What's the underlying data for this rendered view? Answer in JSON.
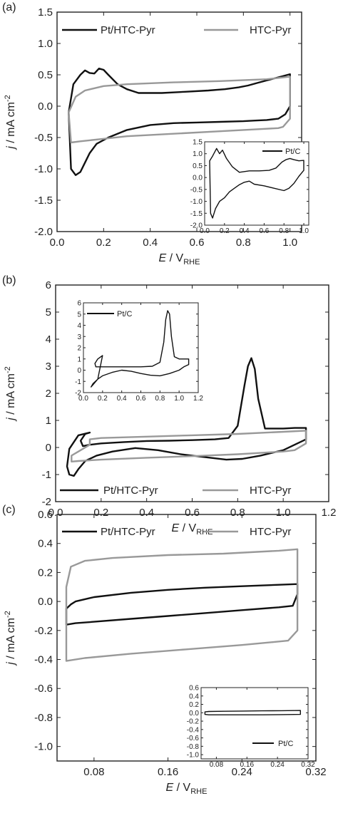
{
  "chart_data": [
    {
      "type": "line",
      "panel_label": "(a)",
      "xlabel": {
        "symbol": "E",
        "unit": "V",
        "unit_sub": "RHE"
      },
      "ylabel": {
        "symbol": "j",
        "unit": "mA cm",
        "unit_sup": "-2"
      },
      "xlim": [
        0.0,
        1.05
      ],
      "ylim": [
        -2.0,
        1.5
      ],
      "x_ticks": [
        0.0,
        0.2,
        0.4,
        0.6,
        0.8,
        1.0
      ],
      "x_tick_labels": [
        "0.0",
        "0.2",
        "0.4",
        "0.6",
        "0.8",
        "1.0"
      ],
      "y_ticks": [
        -2.0,
        -1.5,
        -1.0,
        -0.5,
        0.0,
        0.5,
        1.0,
        1.5
      ],
      "y_tick_labels": [
        "-2.0",
        "-1.5",
        "-1.0",
        "-0.5",
        "0.0",
        "0.5",
        "1.0",
        "1.5"
      ],
      "legend": "top",
      "grid": false,
      "series": [
        {
          "name": "Pt/HTC-Pyr",
          "color": "#111111",
          "x": [
            0.05,
            0.07,
            0.1,
            0.12,
            0.14,
            0.16,
            0.18,
            0.2,
            0.22,
            0.26,
            0.3,
            0.35,
            0.45,
            0.55,
            0.65,
            0.72,
            0.78,
            0.82,
            0.86,
            0.9,
            0.94,
            0.97,
            0.99,
            1.0,
            1.0,
            0.98,
            0.95,
            0.9,
            0.85,
            0.8,
            0.7,
            0.6,
            0.5,
            0.4,
            0.3,
            0.22,
            0.17,
            0.14,
            0.12,
            0.1,
            0.08,
            0.06,
            0.05
          ],
          "y": [
            -0.1,
            0.35,
            0.5,
            0.57,
            0.53,
            0.52,
            0.6,
            0.58,
            0.5,
            0.35,
            0.27,
            0.21,
            0.21,
            0.23,
            0.25,
            0.27,
            0.3,
            0.33,
            0.37,
            0.41,
            0.45,
            0.48,
            0.5,
            0.51,
            0.0,
            -0.13,
            -0.2,
            -0.22,
            -0.23,
            -0.24,
            -0.25,
            -0.26,
            -0.27,
            -0.3,
            -0.38,
            -0.5,
            -0.6,
            -0.75,
            -0.9,
            -1.05,
            -1.1,
            -1.0,
            -0.1
          ]
        },
        {
          "name": "HTC-Pyr",
          "color": "#999999",
          "x": [
            0.05,
            0.08,
            0.12,
            0.2,
            0.3,
            0.5,
            0.7,
            0.9,
            1.0,
            1.0,
            0.97,
            0.95,
            0.9,
            0.7,
            0.5,
            0.3,
            0.2,
            0.1,
            0.06,
            0.05
          ],
          "y": [
            -0.1,
            0.15,
            0.25,
            0.32,
            0.35,
            0.38,
            0.4,
            0.43,
            0.47,
            -0.2,
            -0.33,
            -0.35,
            -0.36,
            -0.4,
            -0.44,
            -0.48,
            -0.52,
            -0.56,
            -0.58,
            -0.1
          ]
        }
      ],
      "inset": {
        "xlim": [
          0.0,
          1.05
        ],
        "ylim": [
          -2.0,
          1.5
        ],
        "x_ticks": [
          0.0,
          0.2,
          0.4,
          0.6,
          0.8,
          1.0
        ],
        "x_tick_labels": [
          "0.0",
          "0.2",
          "0.4",
          "0.6",
          "0.8",
          "1.0"
        ],
        "y_ticks": [
          -2.0,
          -1.5,
          -1.0,
          -0.5,
          0.0,
          0.5,
          1.0,
          1.5
        ],
        "y_tick_labels": [
          "-2.0",
          "-1.5",
          "-1.0",
          "-0.5",
          "0.0",
          "0.5",
          "1.0",
          "1.5"
        ],
        "series": [
          {
            "name": "Pt/C",
            "color": "#111111",
            "x": [
              0.05,
              0.08,
              0.12,
              0.15,
              0.18,
              0.22,
              0.28,
              0.35,
              0.45,
              0.55,
              0.65,
              0.72,
              0.78,
              0.82,
              0.86,
              0.9,
              0.95,
              1.0,
              1.0,
              0.95,
              0.9,
              0.85,
              0.8,
              0.7,
              0.6,
              0.5,
              0.45,
              0.4,
              0.35,
              0.3,
              0.25,
              0.2,
              0.15,
              0.11,
              0.08,
              0.06,
              0.05
            ],
            "y": [
              0.7,
              0.9,
              1.22,
              1.0,
              1.15,
              0.8,
              0.45,
              0.22,
              0.28,
              0.28,
              0.3,
              0.4,
              0.65,
              0.75,
              0.8,
              0.75,
              0.7,
              0.72,
              0.3,
              0.05,
              -0.25,
              -0.45,
              -0.55,
              -0.45,
              -0.35,
              -0.28,
              -0.15,
              -0.2,
              -0.3,
              -0.45,
              -0.6,
              -0.85,
              -1.0,
              -1.3,
              -1.7,
              -1.5,
              0.7
            ]
          }
        ]
      }
    },
    {
      "type": "line",
      "panel_label": "(b)",
      "xlabel": {
        "symbol": "E",
        "unit": "V",
        "unit_sub": "RHE"
      },
      "ylabel": {
        "symbol": "j",
        "unit": "mA cm",
        "unit_sup": "-2"
      },
      "xlim": [
        0.0,
        1.2
      ],
      "ylim": [
        -2,
        6
      ],
      "x_ticks": [
        0.0,
        0.2,
        0.4,
        0.6,
        0.8,
        1.0,
        1.2
      ],
      "x_tick_labels": [
        "0.0",
        "0.2",
        "0.4",
        "0.6",
        "0.8",
        "1.0",
        "1.2"
      ],
      "y_ticks": [
        -2,
        -1,
        0,
        1,
        2,
        3,
        4,
        5,
        6
      ],
      "y_tick_labels": [
        "-2",
        "-1",
        "0",
        "1",
        "2",
        "3",
        "4",
        "5",
        "6"
      ],
      "legend": "bottom",
      "grid": false,
      "series": [
        {
          "name": "Pt/HTC-Pyr",
          "color": "#111111",
          "x": [
            0.15,
            0.13,
            0.11,
            0.12,
            0.15,
            0.2,
            0.3,
            0.4,
            0.5,
            0.6,
            0.7,
            0.76,
            0.8,
            0.83,
            0.845,
            0.86,
            0.875,
            0.89,
            0.92,
            1.0,
            1.05,
            1.1,
            1.1,
            1.05,
            1.0,
            0.9,
            0.82,
            0.75,
            0.65,
            0.55,
            0.45,
            0.35,
            0.25,
            0.18,
            0.13,
            0.1,
            0.08,
            0.06,
            0.05,
            0.06,
            0.1,
            0.15
          ],
          "y": [
            0.55,
            0.5,
            0.25,
            0.05,
            0.1,
            0.15,
            0.2,
            0.24,
            0.25,
            0.27,
            0.3,
            0.35,
            0.8,
            2.3,
            3.0,
            3.3,
            2.9,
            1.8,
            0.7,
            0.7,
            0.72,
            0.72,
            0.3,
            0.1,
            -0.1,
            -0.3,
            -0.42,
            -0.45,
            -0.35,
            -0.25,
            -0.1,
            -0.02,
            -0.15,
            -0.3,
            -0.5,
            -0.8,
            -1.05,
            -1.0,
            -0.7,
            -0.05,
            0.45,
            0.55
          ]
        },
        {
          "name": "HTC-Pyr",
          "color": "#999999",
          "x": [
            0.15,
            0.15,
            0.2,
            0.4,
            0.6,
            0.8,
            1.0,
            1.1,
            1.1,
            1.05,
            1.0,
            0.8,
            0.6,
            0.4,
            0.2,
            0.1,
            0.07,
            0.07,
            0.15
          ],
          "y": [
            0.1,
            0.3,
            0.35,
            0.4,
            0.45,
            0.5,
            0.58,
            0.62,
            0.15,
            -0.1,
            -0.15,
            -0.25,
            -0.32,
            -0.38,
            -0.45,
            -0.5,
            -0.52,
            -0.3,
            0.1
          ]
        }
      ],
      "inset": {
        "xlim": [
          0.0,
          1.2
        ],
        "ylim": [
          -2,
          6
        ],
        "x_ticks": [
          0.0,
          0.2,
          0.4,
          0.6,
          0.8,
          1.0,
          1.2
        ],
        "x_tick_labels": [
          "0.0",
          "0.2",
          "0.4",
          "0.6",
          "0.8",
          "1.0",
          "1.2"
        ],
        "y_ticks": [
          -2,
          -1,
          0,
          1,
          2,
          3,
          4,
          5,
          6
        ],
        "y_tick_labels": [
          "-2",
          "-1",
          "0",
          "1",
          "2",
          "3",
          "4",
          "5",
          "6"
        ],
        "series": [
          {
            "name": "Pt/C",
            "color": "#111111",
            "x": [
              0.2,
              0.15,
              0.12,
              0.13,
              0.2,
              0.3,
              0.45,
              0.6,
              0.72,
              0.8,
              0.84,
              0.86,
              0.88,
              0.9,
              0.92,
              0.95,
              1.0,
              1.1,
              1.1,
              1.05,
              1.0,
              0.9,
              0.8,
              0.7,
              0.6,
              0.5,
              0.4,
              0.3,
              0.2,
              0.15,
              0.1,
              0.08,
              0.1,
              0.15,
              0.2
            ],
            "y": [
              1.3,
              1.0,
              0.6,
              0.3,
              0.3,
              0.3,
              0.3,
              0.3,
              0.35,
              0.7,
              2.5,
              4.5,
              5.3,
              5.0,
              3.0,
              1.2,
              1.0,
              1.0,
              0.5,
              0.3,
              0.0,
              -0.3,
              -0.5,
              -0.45,
              -0.3,
              -0.1,
              0.0,
              -0.2,
              -0.5,
              -0.8,
              -1.3,
              -1.5,
              -1.2,
              -0.8,
              1.3
            ]
          }
        ]
      }
    },
    {
      "type": "line",
      "panel_label": "(c)",
      "xlabel": {
        "symbol": "E",
        "unit": "V",
        "unit_sub": "RHE"
      },
      "ylabel": {
        "symbol": "j",
        "unit": "mA cm",
        "unit_sup": "-2"
      },
      "xlim": [
        0.04,
        0.32
      ],
      "ylim": [
        -1.1,
        0.6
      ],
      "x_ticks": [
        0.08,
        0.16,
        0.24,
        0.32
      ],
      "x_tick_labels": [
        "0.08",
        "0.16",
        "0.24",
        "0.32"
      ],
      "y_ticks": [
        -1.0,
        -0.8,
        -0.6,
        -0.4,
        -0.2,
        0.0,
        0.2,
        0.4,
        0.6
      ],
      "y_tick_labels": [
        "-1.0",
        "-0.8",
        "-0.6",
        "-0.4",
        "-0.2",
        "0.0",
        "0.2",
        "0.4",
        "0.6"
      ],
      "legend": "top",
      "grid": false,
      "series": [
        {
          "name": "Pt/HTC-Pyr",
          "color": "#111111",
          "x": [
            0.05,
            0.055,
            0.06,
            0.08,
            0.12,
            0.16,
            0.2,
            0.24,
            0.28,
            0.3,
            0.3,
            0.295,
            0.28,
            0.24,
            0.2,
            0.16,
            0.12,
            0.08,
            0.06,
            0.05,
            0.05
          ],
          "y": [
            -0.05,
            -0.02,
            0.0,
            0.03,
            0.06,
            0.08,
            0.095,
            0.105,
            0.115,
            0.12,
            0.05,
            -0.03,
            -0.04,
            -0.06,
            -0.08,
            -0.1,
            -0.12,
            -0.14,
            -0.15,
            -0.16,
            -0.05
          ]
        },
        {
          "name": "HTC-Pyr",
          "color": "#999999",
          "x": [
            0.05,
            0.05,
            0.055,
            0.07,
            0.1,
            0.16,
            0.22,
            0.28,
            0.3,
            0.3,
            0.3,
            0.29,
            0.24,
            0.18,
            0.12,
            0.07,
            0.05,
            0.05
          ],
          "y": [
            -0.4,
            0.1,
            0.24,
            0.28,
            0.3,
            0.32,
            0.33,
            0.35,
            0.36,
            0.2,
            -0.2,
            -0.27,
            -0.3,
            -0.33,
            -0.36,
            -0.39,
            -0.41,
            -0.4
          ]
        }
      ],
      "inset": {
        "xlim": [
          0.04,
          0.32
        ],
        "ylim": [
          -1.1,
          0.6
        ],
        "x_ticks": [
          0.08,
          0.16,
          0.24,
          0.32
        ],
        "x_tick_labels": [
          "0.08",
          "0.16",
          "0.24",
          "0.32"
        ],
        "y_ticks": [
          -1.0,
          -0.8,
          -0.6,
          -0.4,
          -0.2,
          0.0,
          0.2,
          0.4,
          0.6
        ],
        "y_tick_labels": [
          "-1.0",
          "-0.8",
          "-0.6",
          "-0.4",
          "-0.2",
          "0.0",
          "0.2",
          "0.4",
          "0.6"
        ],
        "series": [
          {
            "name": "Pt/C",
            "color": "#111111",
            "x": [
              0.05,
              0.06,
              0.1,
              0.15,
              0.2,
              0.25,
              0.3,
              0.3,
              0.25,
              0.2,
              0.15,
              0.1,
              0.06,
              0.05,
              0.05
            ],
            "y": [
              0.02,
              0.03,
              0.035,
              0.04,
              0.045,
              0.05,
              0.055,
              -0.04,
              -0.045,
              -0.05,
              -0.05,
              -0.05,
              -0.05,
              -0.04,
              0.02
            ]
          }
        ]
      }
    }
  ]
}
